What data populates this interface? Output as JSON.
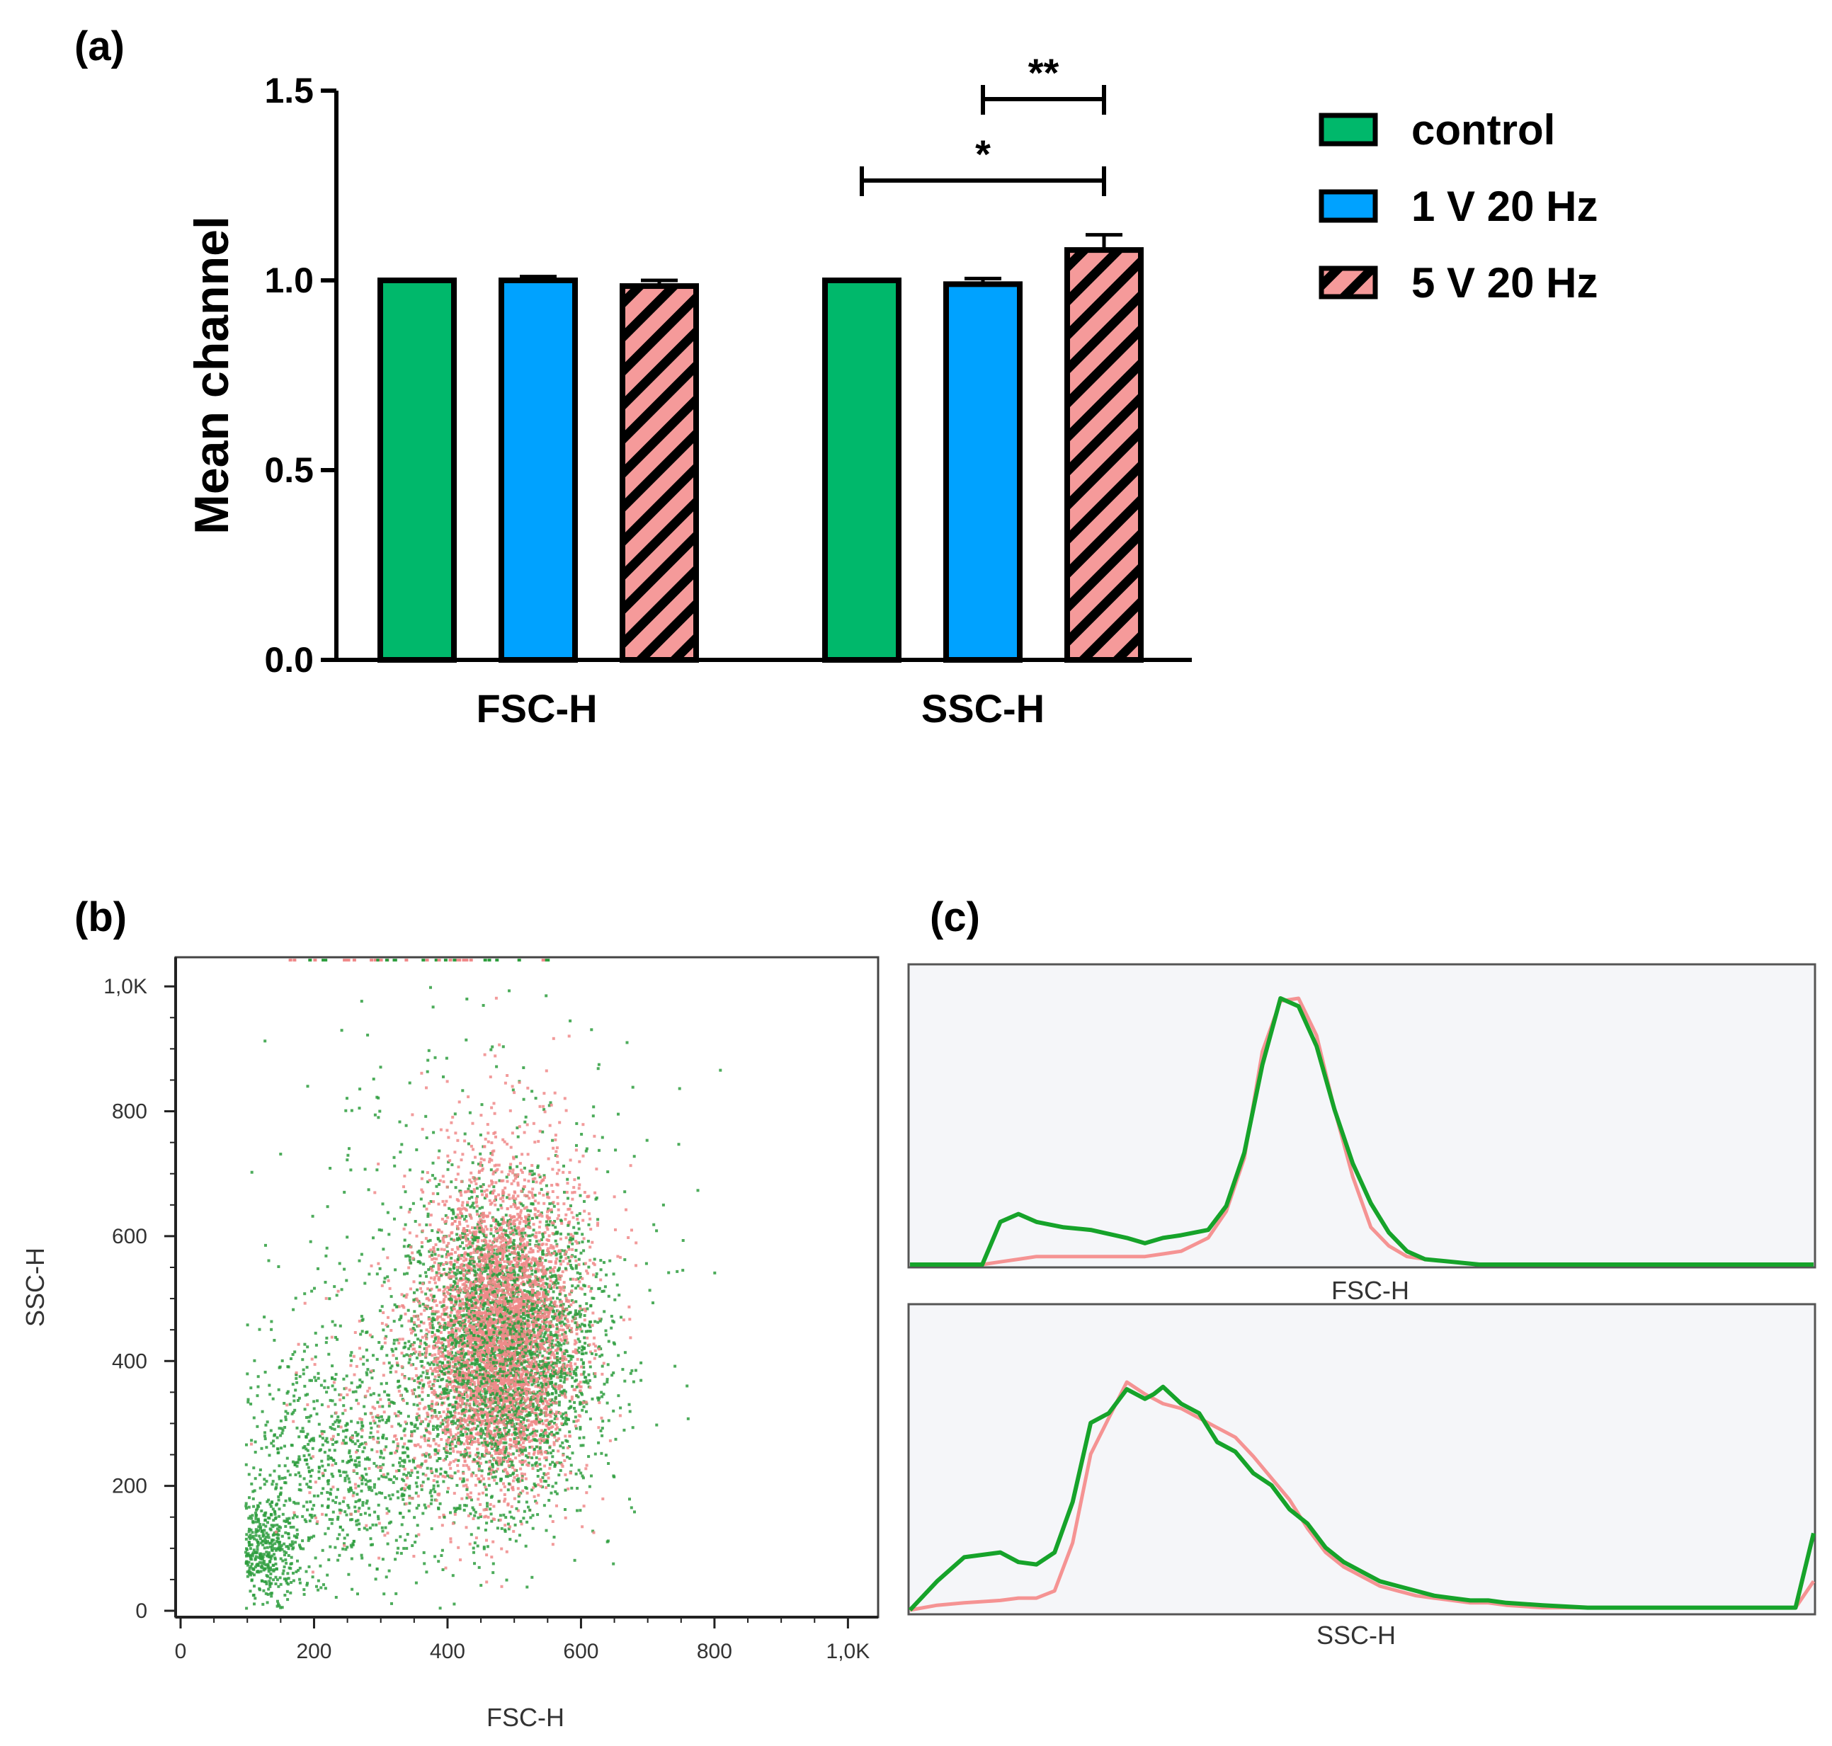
{
  "colors": {
    "control": "#00b86b",
    "v1_20hz": "#00a2ff",
    "v5_20hz": "#f59a9a",
    "histogram_bg": "#f5f6f9",
    "dot_green": "#2e9e3e",
    "dot_pink": "#f08a8a"
  },
  "chart_data": [
    {
      "panel": "(a)",
      "type": "bar",
      "ylabel": "Mean channel",
      "xlabel": "",
      "ylim": [
        0.0,
        1.5
      ],
      "yticks": [
        "0.0",
        "0.5",
        "1.0",
        "1.5"
      ],
      "categories": [
        "FSC-H",
        "SSC-H"
      ],
      "series": [
        {
          "name": "control",
          "values": [
            1.0,
            1.0
          ],
          "errors": [
            0.0,
            0.0
          ],
          "pattern": "solid"
        },
        {
          "name": "1 V 20 Hz",
          "values": [
            1.0,
            0.99
          ],
          "errors": [
            0.01,
            0.015
          ],
          "pattern": "solid"
        },
        {
          "name": "5 V 20 Hz",
          "values": [
            0.985,
            1.08
          ],
          "errors": [
            0.015,
            0.04
          ],
          "pattern": "hatched"
        }
      ],
      "significance": [
        {
          "label": "**",
          "category": "SSC-H",
          "from_series": "1 V 20 Hz",
          "to_series": "5 V 20 Hz"
        },
        {
          "label": "*",
          "category": "SSC-H",
          "from_series": "control",
          "to_series": "5 V 20 Hz"
        }
      ],
      "legend": "right"
    },
    {
      "panel": "(b)",
      "type": "scatter",
      "xlabel": "FSC-H",
      "ylabel": "SSC-H",
      "xlim": [
        0,
        1024
      ],
      "ylim": [
        0,
        1024
      ],
      "xticks": [
        "0",
        "200",
        "400",
        "600",
        "800",
        "1,0K"
      ],
      "yticks": [
        "0",
        "200",
        "400",
        "600",
        "800",
        "1,0K"
      ],
      "series": [
        {
          "name": "control",
          "color": "green",
          "clusters": [
            {
              "cx": 480,
              "cy": 420,
              "sx": 70,
              "sy": 120,
              "n": 2600
            },
            {
              "cx": 230,
              "cy": 230,
              "sx": 90,
              "sy": 110,
              "n": 900
            },
            {
              "cx": 130,
              "cy": 100,
              "sx": 25,
              "sy": 40,
              "n": 380
            },
            {
              "cx": 420,
              "cy": 600,
              "sx": 160,
              "sy": 200,
              "n": 320
            }
          ]
        },
        {
          "name": "5 V 20 Hz",
          "color": "pink",
          "clusters": [
            {
              "cx": 475,
              "cy": 430,
              "sx": 55,
              "sy": 115,
              "n": 3400
            },
            {
              "cx": 500,
              "cy": 620,
              "sx": 70,
              "sy": 110,
              "n": 500
            },
            {
              "cx": 330,
              "cy": 300,
              "sx": 90,
              "sy": 100,
              "n": 250
            }
          ]
        }
      ]
    },
    {
      "panel": "(c)",
      "type": "line",
      "plots": [
        {
          "xlabel": "FSC-H",
          "x": [
            0,
            0.08,
            0.1,
            0.12,
            0.14,
            0.17,
            0.2,
            0.24,
            0.26,
            0.28,
            0.3,
            0.33,
            0.35,
            0.37,
            0.39,
            0.41,
            0.43,
            0.45,
            0.47,
            0.49,
            0.51,
            0.53,
            0.55,
            0.57,
            0.6,
            0.63,
            0.66,
            0.7,
            0.75,
            0.8,
            1.0
          ],
          "series": [
            {
              "name": "control",
              "color": "green",
              "values": [
                0,
                0,
                0.16,
                0.19,
                0.16,
                0.14,
                0.13,
                0.1,
                0.08,
                0.1,
                0.11,
                0.13,
                0.22,
                0.42,
                0.75,
                1.0,
                0.97,
                0.82,
                0.58,
                0.38,
                0.23,
                0.12,
                0.05,
                0.02,
                0.01,
                0,
                0,
                0,
                0,
                0,
                0
              ]
            },
            {
              "name": "5 V 20 Hz",
              "color": "pink",
              "values": [
                0,
                0,
                0.01,
                0.02,
                0.03,
                0.03,
                0.03,
                0.03,
                0.03,
                0.04,
                0.05,
                0.1,
                0.2,
                0.4,
                0.8,
                0.99,
                1.0,
                0.86,
                0.58,
                0.33,
                0.14,
                0.07,
                0.03,
                0.02,
                0.01,
                0,
                0,
                0,
                0,
                0,
                0
              ]
            }
          ]
        },
        {
          "xlabel": "SSC-H",
          "x": [
            0,
            0.03,
            0.06,
            0.1,
            0.12,
            0.14,
            0.16,
            0.18,
            0.2,
            0.22,
            0.24,
            0.26,
            0.27,
            0.28,
            0.3,
            0.32,
            0.34,
            0.36,
            0.38,
            0.4,
            0.42,
            0.44,
            0.46,
            0.48,
            0.5,
            0.52,
            0.54,
            0.56,
            0.58,
            0.6,
            0.62,
            0.64,
            0.66,
            0.7,
            0.75,
            0.8,
            0.85,
            0.9,
            0.97,
            0.98,
            1.0
          ],
          "series": [
            {
              "name": "control",
              "color": "green",
              "values": [
                0,
                0.12,
                0.22,
                0.24,
                0.2,
                0.19,
                0.24,
                0.45,
                0.78,
                0.82,
                0.92,
                0.88,
                0.9,
                0.93,
                0.86,
                0.82,
                0.7,
                0.66,
                0.57,
                0.52,
                0.42,
                0.36,
                0.26,
                0.2,
                0.16,
                0.12,
                0.1,
                0.08,
                0.06,
                0.05,
                0.04,
                0.04,
                0.03,
                0.02,
                0.01,
                0.01,
                0.01,
                0.01,
                0.01,
                0.01,
                0.32
              ]
            },
            {
              "name": "5 V 20 Hz",
              "color": "pink",
              "values": [
                0,
                0.02,
                0.03,
                0.04,
                0.05,
                0.05,
                0.08,
                0.28,
                0.65,
                0.8,
                0.95,
                0.9,
                0.88,
                0.86,
                0.84,
                0.8,
                0.76,
                0.72,
                0.64,
                0.55,
                0.46,
                0.34,
                0.24,
                0.18,
                0.14,
                0.1,
                0.08,
                0.06,
                0.05,
                0.04,
                0.03,
                0.03,
                0.02,
                0.01,
                0.01,
                0.01,
                0.01,
                0.01,
                0.01,
                0.01,
                0.12
              ]
            }
          ]
        }
      ]
    }
  ]
}
